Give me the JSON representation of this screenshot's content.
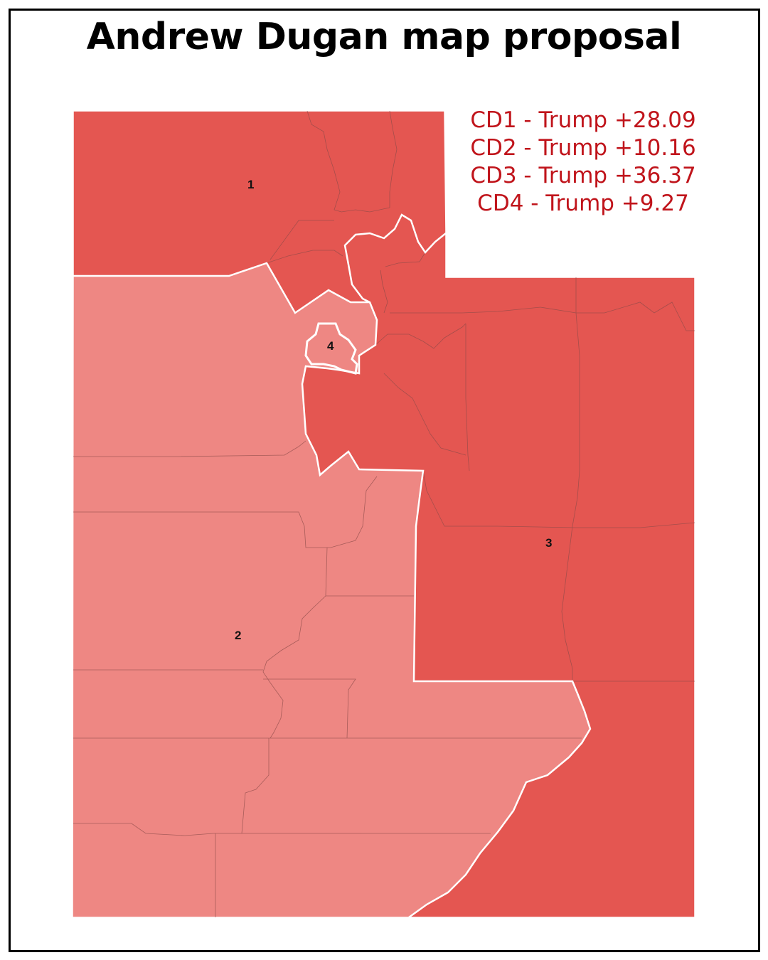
{
  "title": "Andrew Dugan map proposal",
  "colors": {
    "strong_red": "#e45651",
    "light_red": "#ee8783",
    "legend_text": "#c0141b",
    "district_border": "#ffffff",
    "county_line": "#8a4a48"
  },
  "legend": [
    "CD1 - Trump +28.09",
    "CD2 - Trump +10.16",
    "CD3 - Trump +36.37",
    "CD4 - Trump +9.27"
  ],
  "districts": [
    {
      "label": "1",
      "margin": "Trump +28.09"
    },
    {
      "label": "2",
      "margin": "Trump +10.16"
    },
    {
      "label": "3",
      "margin": "Trump +36.37"
    },
    {
      "label": "4",
      "margin": "Trump +9.27"
    }
  ]
}
